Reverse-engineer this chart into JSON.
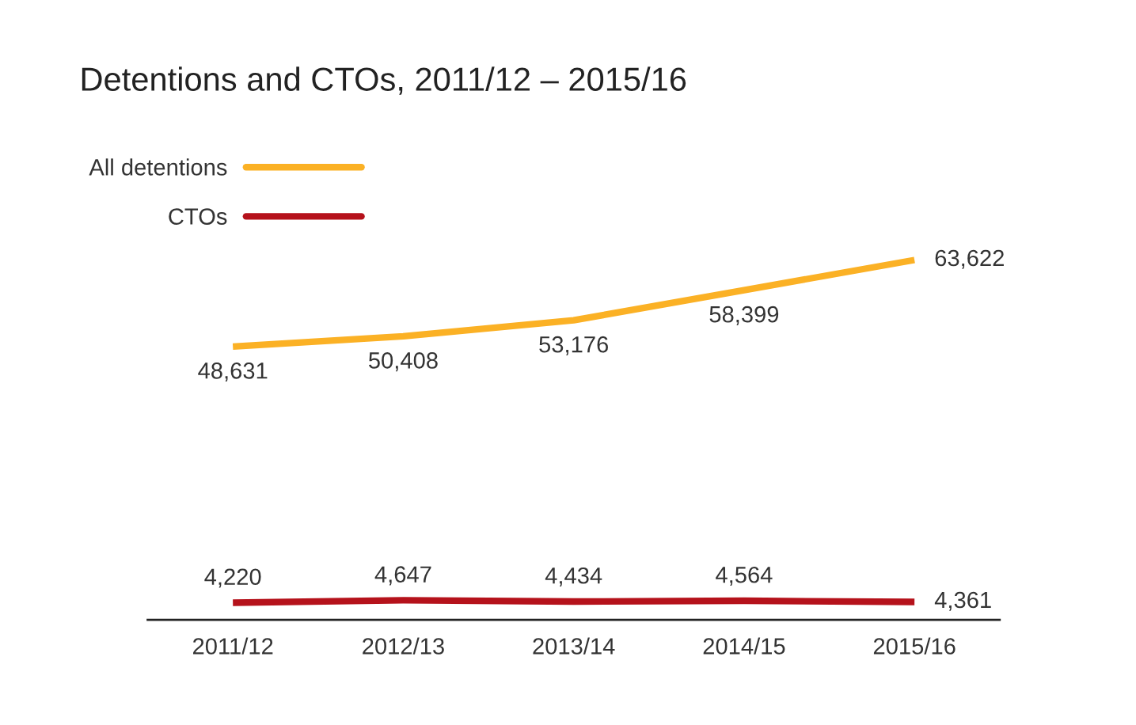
{
  "chart_data": {
    "type": "line",
    "title": "Detentions and CTOs, 2011/12 – 2015/16",
    "categories": [
      "2011/12",
      "2012/13",
      "2013/14",
      "2014/15",
      "2015/16"
    ],
    "series": [
      {
        "name": "All detentions",
        "color": "#fbb125",
        "values": [
          48631,
          50408,
          53176,
          58399,
          63622
        ],
        "value_labels": [
          "48,631",
          "50,408",
          "53,176",
          "58,399",
          "63,622"
        ]
      },
      {
        "name": "CTOs",
        "color": "#b5121b",
        "values": [
          4220,
          4647,
          4434,
          4564,
          4361
        ],
        "value_labels": [
          "4,220",
          "4,647",
          "4,434",
          "4,564",
          "4,361"
        ]
      }
    ],
    "legend": "top left",
    "grid": false,
    "marker": "none",
    "line_style": "solid"
  }
}
